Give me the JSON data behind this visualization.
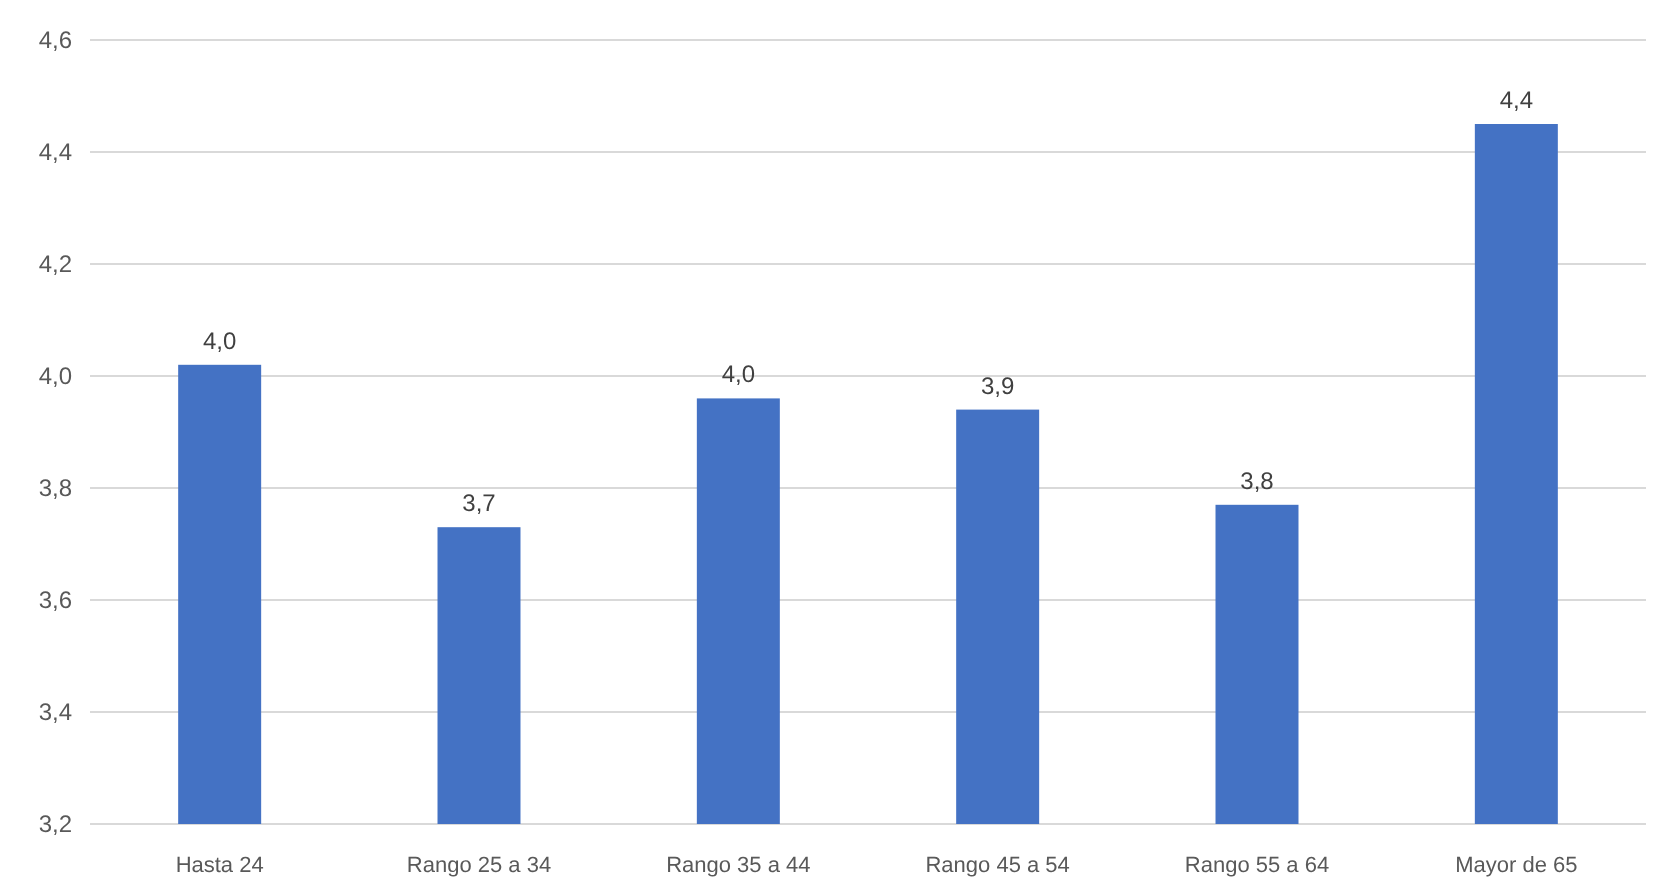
{
  "chart_data": {
    "type": "bar",
    "categories": [
      "Hasta 24",
      "Rango 25 a 34",
      "Rango 35 a 44",
      "Rango 45 a 54",
      "Rango 55 a 64",
      "Mayor de 65"
    ],
    "values": [
      4.02,
      3.73,
      3.96,
      3.94,
      3.77,
      4.45
    ],
    "value_labels": [
      "4,0",
      "3,7",
      "4,0",
      "3,9",
      "3,8",
      "4,4"
    ],
    "color": "#4472c4",
    "ylim": [
      3.2,
      4.6
    ],
    "yticks": [
      {
        "value": 3.2,
        "label": "3,2"
      },
      {
        "value": 3.4,
        "label": "3,4"
      },
      {
        "value": 3.6,
        "label": "3,6"
      },
      {
        "value": 3.8,
        "label": "3,8"
      },
      {
        "value": 4.0,
        "label": "4,0"
      },
      {
        "value": 4.2,
        "label": "4,2"
      },
      {
        "value": 4.4,
        "label": "4,4"
      },
      {
        "value": 4.6,
        "label": "4,6"
      }
    ],
    "grid": true
  }
}
